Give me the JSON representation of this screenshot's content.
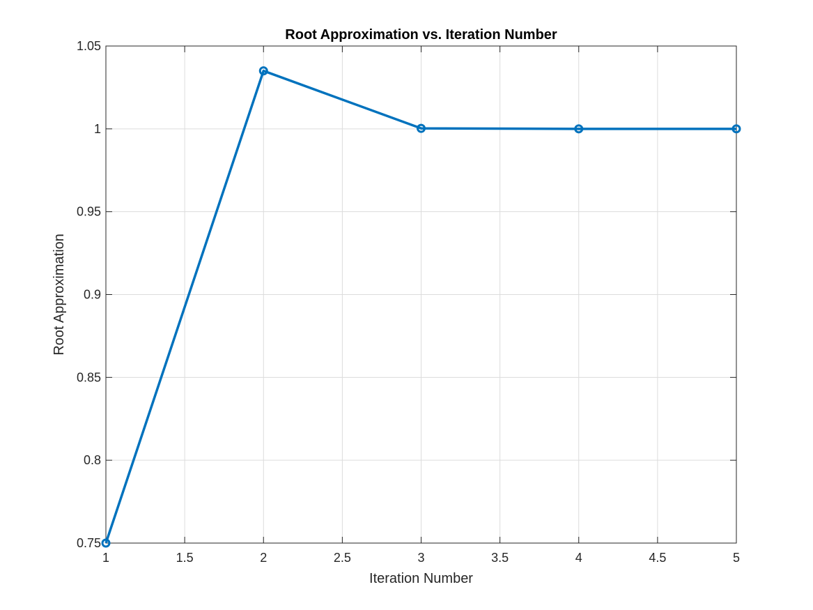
{
  "chart_data": {
    "type": "line",
    "title": "Root Approximation vs. Iteration Number",
    "xlabel": "Iteration Number",
    "ylabel": "Root Approximation",
    "xlim": [
      1,
      5
    ],
    "ylim": [
      0.75,
      1.05
    ],
    "x_ticks": [
      1,
      1.5,
      2,
      2.5,
      3,
      3.5,
      4,
      4.5,
      5
    ],
    "x_tick_labels": [
      "1",
      "1.5",
      "2",
      "2.5",
      "3",
      "3.5",
      "4",
      "4.5",
      "5"
    ],
    "y_ticks": [
      0.75,
      0.8,
      0.85,
      0.9,
      0.95,
      1,
      1.05
    ],
    "y_tick_labels": [
      "0.75",
      "0.8",
      "0.85",
      "0.9",
      "0.95",
      "1",
      "1.05"
    ],
    "grid": true,
    "marker": "circle",
    "series": [
      {
        "x": [
          1,
          2,
          3,
          4,
          5
        ],
        "values": [
          0.75,
          1.035,
          1.0003,
          1.0,
          1.0
        ],
        "color": "#0072BD"
      }
    ]
  }
}
